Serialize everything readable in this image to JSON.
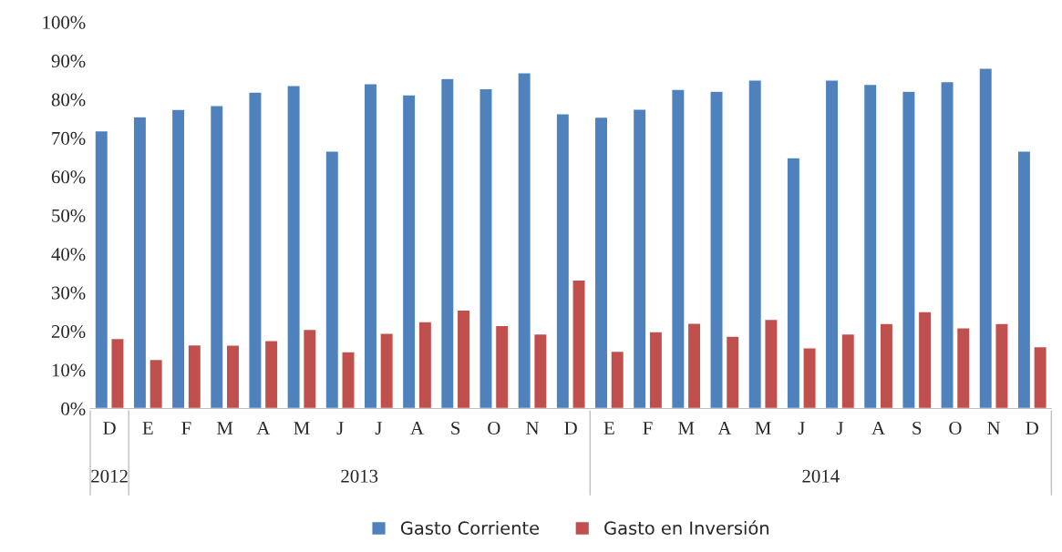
{
  "chart_data": {
    "type": "bar",
    "categories": [
      "D",
      "E",
      "F",
      "M",
      "A",
      "M",
      "J",
      "J",
      "A",
      "S",
      "O",
      "N",
      "D",
      "E",
      "F",
      "M",
      "A",
      "M",
      "J",
      "J",
      "A",
      "S",
      "O",
      "N",
      "D"
    ],
    "series": [
      {
        "name": "Gasto Corriente",
        "color": "#4f81bd",
        "values": [
          71.9,
          75.5,
          77.4,
          78.4,
          81.9,
          83.6,
          66.6,
          84.1,
          81.2,
          85.4,
          82.8,
          86.9,
          76.3,
          75.4,
          77.5,
          82.6,
          82.1,
          85.0,
          64.9,
          85.0,
          83.9,
          82.1,
          84.6,
          88.1,
          66.6
        ]
      },
      {
        "name": "Gasto en Inversión",
        "color": "#c0504d",
        "values": [
          18.1,
          12.7,
          16.5,
          16.4,
          17.6,
          20.5,
          14.7,
          19.5,
          22.5,
          25.5,
          21.5,
          19.3,
          33.3,
          14.8,
          19.9,
          22.1,
          18.7,
          23.1,
          15.7,
          19.3,
          22.0,
          25.1,
          20.9,
          22.0,
          16.0
        ]
      }
    ],
    "ylim": [
      0,
      100
    ],
    "yticks": [
      {
        "value": 0,
        "label": "0%"
      },
      {
        "value": 10,
        "label": "10%"
      },
      {
        "value": 20,
        "label": "20%"
      },
      {
        "value": 30,
        "label": "30%"
      },
      {
        "value": 40,
        "label": "40%"
      },
      {
        "value": 50,
        "label": "50%"
      },
      {
        "value": 60,
        "label": "60%"
      },
      {
        "value": 70,
        "label": "70%"
      },
      {
        "value": 80,
        "label": "80%"
      },
      {
        "value": 90,
        "label": "90%"
      },
      {
        "value": 100,
        "label": "100%"
      }
    ],
    "annotations": [
      "2012",
      "2013",
      "2014"
    ],
    "grid": false,
    "legend": "bottom"
  }
}
